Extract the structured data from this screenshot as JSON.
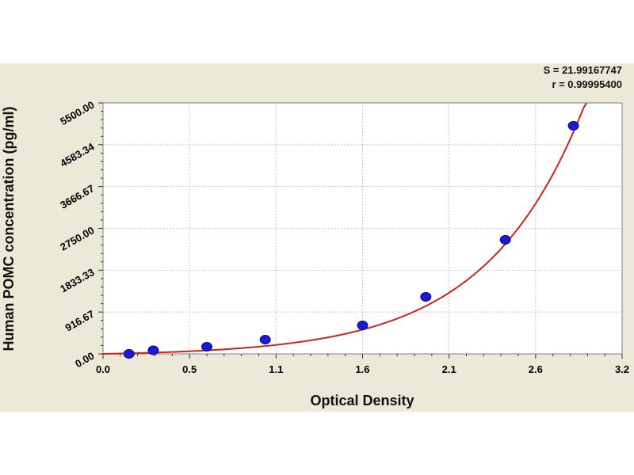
{
  "chart_data": {
    "type": "scatter",
    "title": "",
    "xlabel": "Optical Density",
    "ylabel": "Human POMC concentration (pg/ml)",
    "xlim": [
      0.0,
      3.2
    ],
    "ylim": [
      0.0,
      5500.0
    ],
    "x_ticks": [
      "0.0",
      "0.5",
      "1.1",
      "1.6",
      "2.1",
      "2.6",
      "3.2"
    ],
    "y_ticks": [
      "0.00",
      "916.67",
      "1833.33",
      "2750.00",
      "3666.67",
      "4583.34",
      "5500.00"
    ],
    "grid": true,
    "points": {
      "x": [
        0.16,
        0.31,
        0.64,
        1.0,
        1.6,
        1.99,
        2.48,
        2.9
      ],
      "y": [
        0,
        78,
        156,
        312,
        625,
        1250,
        2500,
        5000
      ]
    },
    "fit_curve": {
      "type": "exponential",
      "x_start": 0.0,
      "x_end": 2.98,
      "a": 40.6,
      "b": 1.653
    },
    "stats": {
      "s_line": "S = 21.99167747",
      "r_line": "r = 0.99995400"
    },
    "colors": {
      "background": "#ece9d8",
      "plot_area": "#ffffff",
      "grid": "#c8c8c8",
      "curve": "#cc2222",
      "point": "#1a1ad6"
    }
  }
}
